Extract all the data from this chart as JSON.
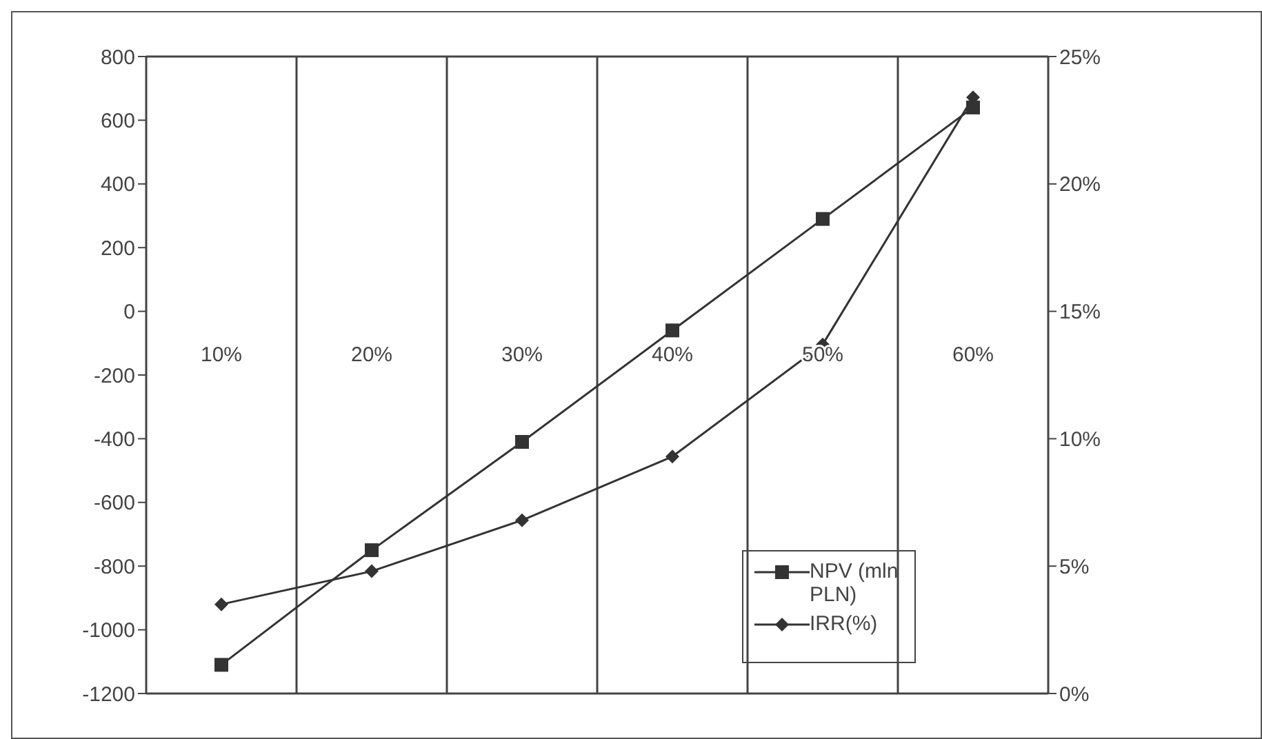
{
  "chart_data": {
    "type": "line",
    "categories": [
      "10%",
      "20%",
      "30%",
      "40%",
      "50%",
      "60%"
    ],
    "series": [
      {
        "name": "NPV (mln PLN)",
        "color": "#333333",
        "marker": "square",
        "values": [
          -1110,
          -750,
          -410,
          -60,
          290,
          640
        ]
      },
      {
        "name": "IRR(%)",
        "color": "#333333",
        "marker": "diamond",
        "axis": "y2",
        "values": [
          3.5,
          4.8,
          6.8,
          9.3,
          13.7,
          23.4
        ]
      }
    ],
    "ylim": [
      -1200,
      800
    ],
    "yticks": [
      -1200,
      -1000,
      -800,
      -600,
      -400,
      -200,
      0,
      200,
      400,
      600,
      800
    ],
    "y2lim": [
      0,
      25
    ],
    "y2ticks": [
      {
        "value": 0,
        "label": "0%"
      },
      {
        "value": 5,
        "label": "5%"
      },
      {
        "value": 10,
        "label": "10%"
      },
      {
        "value": 15,
        "label": "15%"
      },
      {
        "value": 20,
        "label": "20%"
      },
      {
        "value": 25,
        "label": "25%"
      }
    ],
    "grid": true,
    "legend": "bottom right",
    "line_style": "solid"
  }
}
